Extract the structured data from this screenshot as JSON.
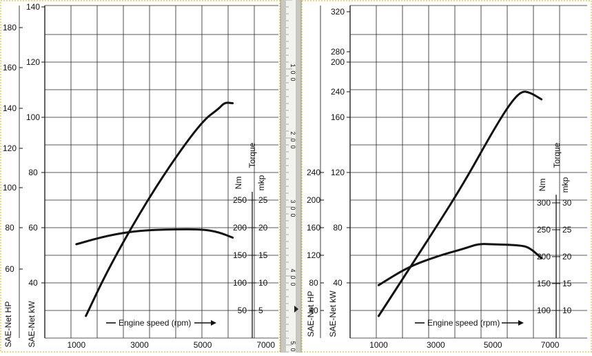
{
  "window": {
    "frame_color": "#c8c8c0",
    "ruler_marks": [
      "1",
      "0",
      "0",
      "2",
      "0",
      "0",
      "3",
      "0",
      "0",
      "4",
      "0",
      "0",
      "5",
      "0"
    ]
  },
  "chart_data": [
    {
      "type": "line",
      "title": "",
      "x": {
        "ticks": [
          "1000",
          "3000",
          "5000",
          "7000"
        ],
        "range": [
          0,
          7400
        ]
      },
      "power": {
        "kw_axis_label": "SAE-Net kW",
        "hp_axis_label": "SAE-Net HP",
        "kw_ticks": [
          "40",
          "60",
          "80",
          "100",
          "120",
          "140"
        ],
        "hp_ticks": [
          "60",
          "80",
          "100",
          "120",
          "140",
          "160",
          "180"
        ],
        "kw_range": [
          20,
          140
        ]
      },
      "torque": {
        "title": "Torque",
        "unit_nm": "Nm",
        "unit_mkp": "mkp",
        "nm_ticks": [
          "50",
          "100",
          "150",
          "200",
          "250"
        ],
        "mkp_ticks": [
          "5",
          "10",
          "15",
          "20",
          "25"
        ],
        "nm_range": [
          0,
          270
        ]
      },
      "engine_speed_label": "Engine speed (rpm)",
      "series": [
        {
          "key": "power_kw",
          "points": [
            [
              1300,
              20
            ],
            [
              2000,
              48
            ],
            [
              3000,
              82
            ],
            [
              4000,
              112
            ],
            [
              5000,
              138
            ],
            [
              5500,
              145
            ],
            [
              5700,
              149
            ],
            [
              5950,
              148.5
            ]
          ]
        },
        {
          "key": "torque_nm",
          "points": [
            [
              1000,
              170
            ],
            [
              2000,
              186
            ],
            [
              3000,
              195
            ],
            [
              4000,
              197
            ],
            [
              5000,
              197
            ],
            [
              5500,
              192
            ],
            [
              5950,
              182
            ]
          ]
        }
      ]
    },
    {
      "type": "line",
      "title": "",
      "x": {
        "ticks": [
          "1000",
          "3000",
          "5000",
          "7000"
        ],
        "range": [
          0,
          8300
        ]
      },
      "power": {
        "kw_axis_label": "SAE-Net kW",
        "hp_axis_label": "SAE-Net HP",
        "kw_ticks": [
          "40",
          "80",
          "120",
          "160",
          "200",
          "240",
          "280",
          "320"
        ],
        "hp_ticks": [
          "40",
          "80",
          "120",
          "160",
          "200",
          "240"
        ],
        "hp_range": [
          0,
          240
        ]
      },
      "torque": {
        "title": "Torque",
        "unit_nm": "Nm",
        "unit_mkp": "mkp",
        "nm_ticks": [
          "100",
          "150",
          "200",
          "250",
          "300"
        ],
        "mkp_ticks": [
          "10",
          "15",
          "20",
          "25",
          "30"
        ],
        "nm_range": [
          0,
          320
        ]
      },
      "engine_speed_label": "Engine speed (rpm)",
      "series": [
        {
          "key": "power_hp",
          "points": [
            [
              1000,
              16
            ],
            [
              2000,
              48
            ],
            [
              3000,
              80
            ],
            [
              4000,
              113
            ],
            [
              5000,
              150
            ],
            [
              5600,
              170
            ],
            [
              6000,
              179
            ],
            [
              6300,
              178
            ],
            [
              6700,
              173
            ]
          ]
        },
        {
          "key": "torque_nm",
          "points": [
            [
              1000,
              147
            ],
            [
              2000,
              180
            ],
            [
              3000,
              200
            ],
            [
              4000,
              215
            ],
            [
              4500,
              224
            ],
            [
              5000,
              223
            ],
            [
              6000,
              221
            ],
            [
              6300,
              216
            ],
            [
              6700,
              197
            ]
          ]
        }
      ]
    }
  ]
}
